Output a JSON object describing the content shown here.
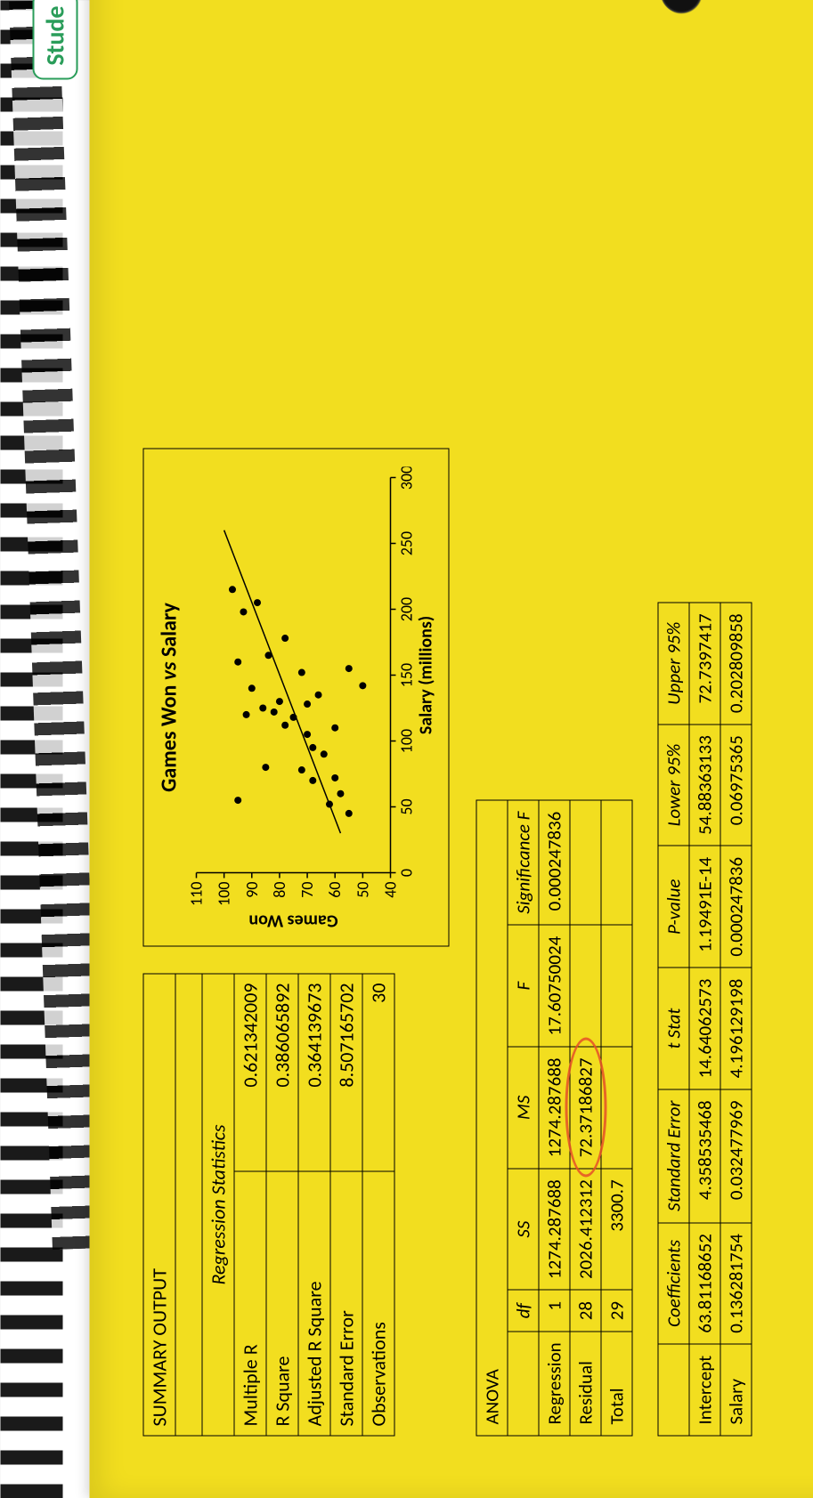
{
  "header": {
    "tab_text": "Stude"
  },
  "summary": {
    "title": "SUMMARY OUTPUT",
    "stats_header": "Regression Statistics",
    "rows": [
      {
        "label": "Multiple R",
        "value": "0.621342009"
      },
      {
        "label": "R Square",
        "value": "0.386065892"
      },
      {
        "label": "Adjusted R Square",
        "value": "0.364139673"
      },
      {
        "label": "Standard Error",
        "value": "8.507165702"
      },
      {
        "label": "Observations",
        "value": "30"
      }
    ]
  },
  "chart": {
    "title": "Games Won vs Salary",
    "ylabel": "Games Won",
    "xlabel": "Salary (millions)",
    "xticks": [
      0,
      50,
      100,
      150,
      200,
      250,
      300
    ],
    "yticks": [
      40,
      50,
      60,
      70,
      80,
      90,
      100,
      110
    ],
    "xlim": [
      0,
      300
    ],
    "ylim": [
      40,
      110
    ],
    "points": [
      [
        45,
        55
      ],
      [
        52,
        62
      ],
      [
        55,
        95
      ],
      [
        70,
        68
      ],
      [
        72,
        60
      ],
      [
        78,
        72
      ],
      [
        80,
        85
      ],
      [
        95,
        68
      ],
      [
        105,
        70
      ],
      [
        110,
        60
      ],
      [
        112,
        78
      ],
      [
        118,
        75
      ],
      [
        120,
        92
      ],
      [
        122,
        82
      ],
      [
        125,
        86
      ],
      [
        128,
        70
      ],
      [
        130,
        80
      ],
      [
        135,
        66
      ],
      [
        140,
        90
      ],
      [
        142,
        50
      ],
      [
        152,
        72
      ],
      [
        160,
        95
      ],
      [
        165,
        84
      ],
      [
        178,
        78
      ],
      [
        198,
        93
      ],
      [
        205,
        88
      ],
      [
        215,
        97
      ],
      [
        155,
        55
      ],
      [
        90,
        64
      ],
      [
        60,
        58
      ]
    ],
    "line": {
      "x1": 30,
      "y1": 58,
      "x2": 260,
      "y2": 100
    },
    "marker_color": "#000000",
    "line_color": "#000000",
    "axis_color": "#000000",
    "background": "transparent",
    "title_fontsize": 24,
    "label_fontsize": 20,
    "tick_fontsize": 18
  },
  "anova": {
    "title": "ANOVA",
    "headers": [
      "",
      "df",
      "SS",
      "MS",
      "F",
      "Significance F"
    ],
    "rows": [
      [
        "Regression",
        "1",
        "1274.287688",
        "1274.287688",
        "17.60750024",
        "0.000247836"
      ],
      [
        "Residual",
        "28",
        "2026.412312",
        "72.37186827",
        "",
        ""
      ],
      [
        "Total",
        "29",
        "3300.7",
        "",
        "",
        ""
      ]
    ],
    "circled_cell": {
      "row": 1,
      "col": 3
    }
  },
  "coef": {
    "headers": [
      "",
      "Coefficients",
      "Standard Error",
      "t Stat",
      "P-value",
      "Lower 95%",
      "Upper 95%"
    ],
    "rows": [
      [
        "Intercept",
        "63.81168652",
        "4.358535468",
        "14.64062573",
        "1.19491E-14",
        "54.88363133",
        "72.7397417"
      ],
      [
        "Salary",
        "0.136281754",
        "0.032477969",
        "4.196129198",
        "0.000247836",
        "0.06975365",
        "0.202809858"
      ]
    ]
  },
  "colors": {
    "paper": "#f2de1f",
    "border": "#000000",
    "annotation": "#e65028"
  }
}
